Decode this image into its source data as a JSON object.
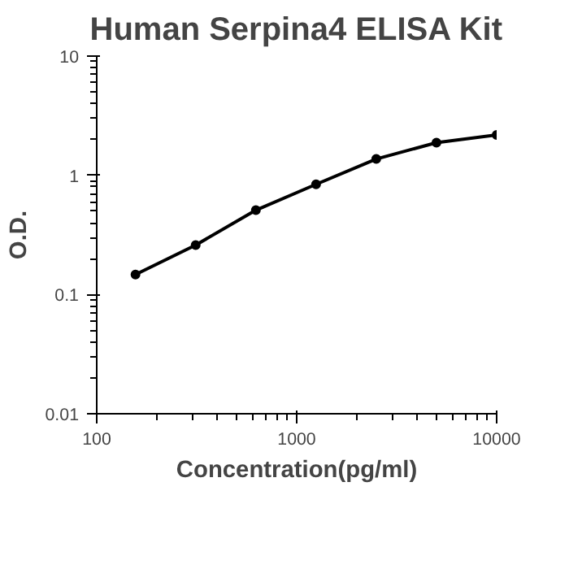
{
  "chart_data": {
    "type": "line",
    "title": "Human Serpina4 ELISA Kit",
    "xlabel": "Concentration(pg/ml)",
    "ylabel": "O.D.",
    "x": [
      156.25,
      312.5,
      625,
      1250,
      2500,
      5000,
      10000
    ],
    "series": [
      {
        "color": "#000000",
        "values": [
          0.147,
          0.26,
          0.51,
          0.84,
          1.37,
          1.88,
          2.18
        ]
      }
    ],
    "log": "xy",
    "xlim": [
      100,
      10000
    ],
    "ylim": [
      0.01,
      10
    ],
    "xticks": [
      100,
      1000,
      10000
    ],
    "yticks": [
      0.01,
      0.1,
      1,
      10
    ],
    "marker": "circle",
    "line_style": "solid",
    "grid": false
  }
}
